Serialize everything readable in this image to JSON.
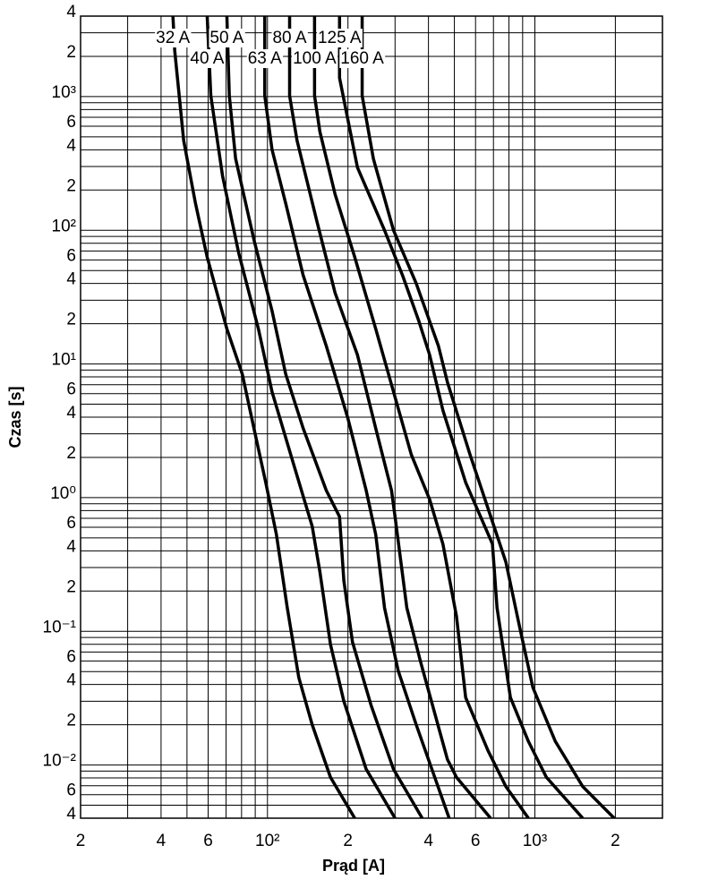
{
  "chart_data": {
    "type": "line",
    "xlabel": "Prąd [A]",
    "ylabel": "Czas [s]",
    "log_x": true,
    "log_y": true,
    "grid": true,
    "xlim": [
      20,
      3000
    ],
    "ylim": [
      0.004,
      4000
    ],
    "xticks": [
      {
        "value": 20,
        "label": "2"
      },
      {
        "value": 40,
        "label": "4"
      },
      {
        "value": 60,
        "label": "6"
      },
      {
        "value": 100,
        "label": "10²"
      },
      {
        "value": 200,
        "label": "2"
      },
      {
        "value": 400,
        "label": "4"
      },
      {
        "value": 600,
        "label": "6"
      },
      {
        "value": 1000,
        "label": "10³"
      },
      {
        "value": 2000,
        "label": "2"
      }
    ],
    "minor_xticks": [
      30,
      50,
      70,
      80,
      90,
      300,
      500,
      700,
      800,
      900
    ],
    "yticks": [
      {
        "value": 4000,
        "label": "4"
      },
      {
        "value": 2000,
        "label": "2"
      },
      {
        "value": 1000,
        "label": "10³"
      },
      {
        "value": 600,
        "label": "6"
      },
      {
        "value": 400,
        "label": "4"
      },
      {
        "value": 200,
        "label": "2"
      },
      {
        "value": 100,
        "label": "10²"
      },
      {
        "value": 60,
        "label": "6"
      },
      {
        "value": 40,
        "label": "4"
      },
      {
        "value": 20,
        "label": "2"
      },
      {
        "value": 10,
        "label": "10¹"
      },
      6,
      4,
      2,
      {
        "value": 1,
        "label": "10⁰"
      },
      {
        "value": 0.6,
        "label": "6"
      },
      {
        "value": 0.4,
        "label": "4"
      },
      {
        "value": 0.2,
        "label": "2"
      },
      {
        "value": 0.1,
        "label": "10⁻¹"
      },
      {
        "value": 0.06,
        "label": "6"
      },
      {
        "value": 0.04,
        "label": "4"
      },
      {
        "value": 0.02,
        "label": "2"
      },
      {
        "value": 0.01,
        "label": "10⁻²"
      },
      {
        "value": 0.006,
        "label": "6"
      },
      {
        "value": 0.004,
        "label": "4"
      }
    ],
    "minor_yticks": [
      3000,
      900,
      800,
      700,
      500,
      300,
      90,
      80,
      70,
      50,
      30,
      9,
      8,
      7,
      5,
      3,
      0.9,
      0.8,
      0.7,
      0.5,
      0.3,
      0.09,
      0.08,
      0.07,
      0.05,
      0.03,
      0.009,
      0.008,
      0.007,
      0.005
    ],
    "series": [
      {
        "name": "32 A",
        "color": "#000000",
        "x": [
          44.3,
          45,
          48.6,
          53.8,
          59.5,
          70.5,
          80.5,
          89,
          98.5,
          108,
          118.6,
          131,
          147,
          172,
          212
        ],
        "values": [
          4000,
          2200,
          469,
          159,
          63,
          18.3,
          8.4,
          3.3,
          1.3,
          0.53,
          0.15,
          0.045,
          0.02,
          0.0081,
          0.004
        ]
      },
      {
        "name": "40 A",
        "color": "#000000",
        "x": [
          59.5,
          61.4,
          67.9,
          78,
          92.5,
          104,
          125,
          147,
          157,
          172,
          193,
          234,
          300
        ],
        "values": [
          4000,
          1015,
          256,
          68,
          18.3,
          6.2,
          1.8,
          0.61,
          0.28,
          0.08,
          0.03,
          0.0093,
          0.004
        ]
      },
      {
        "name": "50 A",
        "color": "#000000",
        "x": [
          70.5,
          72,
          76,
          89,
          104,
          117,
          136,
          166,
          186,
          193,
          208,
          244,
          296,
          379
        ],
        "values": [
          4000,
          1015,
          344,
          85,
          25,
          8.4,
          3.3,
          1.13,
          0.72,
          0.24,
          0.083,
          0.028,
          0.0093,
          0.004
        ]
      },
      {
        "name": "63 A",
        "color": "#000000",
        "x": [
          97.7,
          97.7,
          104,
          117,
          136,
          166,
          200,
          234,
          254,
          274,
          308,
          360,
          478
        ],
        "values": [
          4000,
          1015,
          402,
          159,
          46,
          13.6,
          3.9,
          1.13,
          0.53,
          0.15,
          0.051,
          0.02,
          0.004
        ]
      },
      {
        "name": "80 A",
        "color": "#000000",
        "x": [
          121,
          121,
          129,
          153,
          179,
          217,
          254,
          291,
          300,
          332,
          373,
          471,
          509,
          683
        ],
        "values": [
          4000,
          1015,
          469,
          117,
          34,
          11.7,
          3.3,
          1.13,
          0.72,
          0.15,
          0.06,
          0.011,
          0.0081,
          0.004
        ]
      },
      {
        "name": "100 A",
        "color": "#000000",
        "x": [
          150,
          150,
          157,
          179,
          212,
          254,
          296,
          345,
          404,
          453,
          509,
          551,
          668,
          779,
          946
        ],
        "values": [
          4000,
          1015,
          548,
          186,
          63,
          18.3,
          6.2,
          2.1,
          0.97,
          0.45,
          0.13,
          0.032,
          0.0128,
          0.0069,
          0.004
        ]
      },
      {
        "name": "125 A",
        "color": "#000000",
        "x": [
          186,
          186,
          217,
          274,
          320,
          368,
          404,
          453,
          551,
          694,
          722,
          810,
          946,
          1104,
          1510
        ],
        "values": [
          4000,
          1380,
          295,
          100,
          46,
          21,
          11.7,
          4.5,
          1.3,
          0.45,
          0.15,
          0.032,
          0.015,
          0.0081,
          0.004
        ]
      },
      {
        "name": "160 A",
        "color": "#000000",
        "x": [
          226,
          226,
          249,
          296,
          360,
          436,
          471,
          572,
          668,
          779,
          875,
          983,
          1193,
          1510,
          1980
        ],
        "values": [
          4000,
          1015,
          342,
          100,
          40,
          13.6,
          7.3,
          2.1,
          0.83,
          0.33,
          0.11,
          0.038,
          0.015,
          0.0069,
          0.004
        ]
      }
    ]
  }
}
